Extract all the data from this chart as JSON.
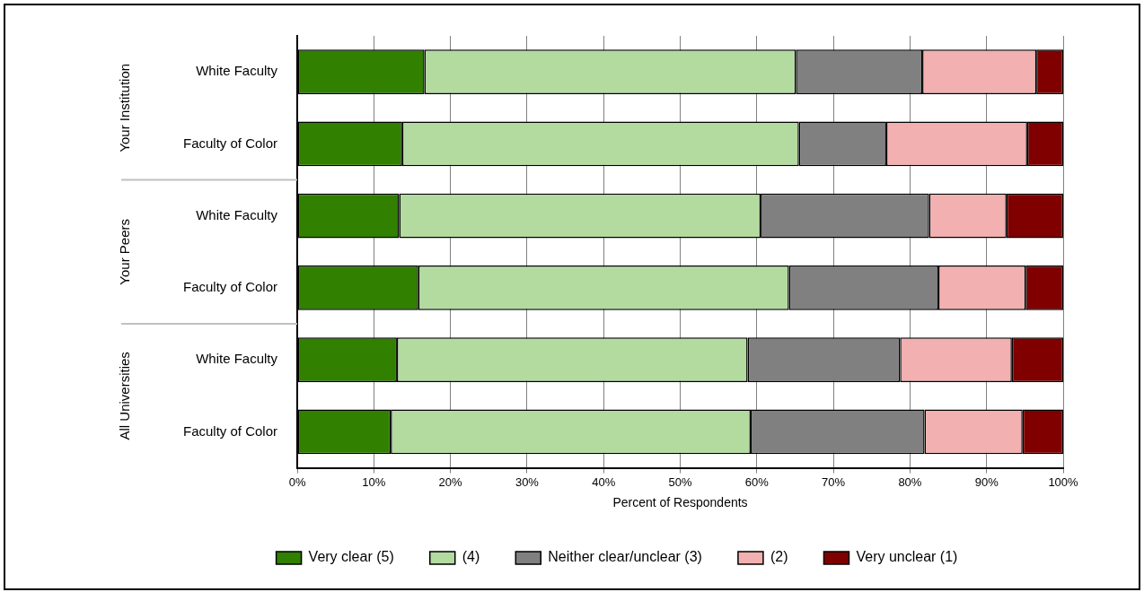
{
  "chart_data": {
    "type": "bar",
    "orientation": "horizontal",
    "stacked": true,
    "xlabel": "Percent of Respondents",
    "categories": [
      "White Faculty",
      "Faculty of Color",
      "White Faculty",
      "Faculty of Color",
      "White Faculty",
      "Faculty of Color"
    ],
    "annotations": [
      "Your Institution",
      "Your Peers",
      "All Universities"
    ],
    "series": [
      {
        "name": "Very clear (5)",
        "color": "#318000",
        "values": [
          16.6,
          13.7,
          13.3,
          15.8,
          13.0,
          12.2
        ]
      },
      {
        "name": "(4)",
        "color": "#b3dba0",
        "values": [
          48.5,
          51.8,
          47.2,
          48.4,
          45.8,
          47.0
        ]
      },
      {
        "name": "Neither clear/unclear (3)",
        "color": "#808080",
        "values": [
          16.5,
          11.4,
          22.0,
          19.5,
          19.9,
          22.7
        ]
      },
      {
        "name": "(2)",
        "color": "#f2b0b0",
        "values": [
          14.9,
          18.4,
          10.1,
          11.4,
          14.6,
          12.8
        ]
      },
      {
        "name": "Very unclear (1)",
        "color": "#800000",
        "values": [
          3.5,
          4.7,
          7.4,
          4.9,
          6.7,
          5.3
        ]
      }
    ],
    "xlim": [
      0,
      100
    ],
    "xticks": [
      {
        "value": 0,
        "label": "0%"
      },
      {
        "value": 10,
        "label": "10%"
      },
      {
        "value": 20,
        "label": "20%"
      },
      {
        "value": 30,
        "label": "30%"
      },
      {
        "value": 40,
        "label": "40%"
      },
      {
        "value": 50,
        "label": "50%"
      },
      {
        "value": 60,
        "label": "60%"
      },
      {
        "value": 70,
        "label": "70%"
      },
      {
        "value": 80,
        "label": "80%"
      },
      {
        "value": 90,
        "label": "90%"
      },
      {
        "value": 100,
        "label": "100%"
      }
    ],
    "grid": "x",
    "legend": "bottom"
  }
}
